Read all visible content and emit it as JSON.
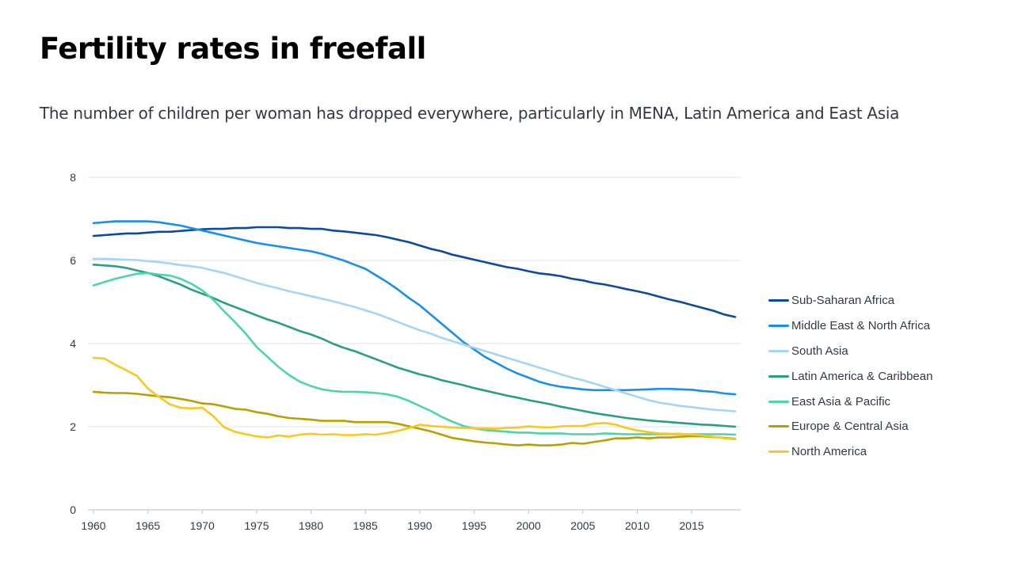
{
  "title": "Fertility rates in freefall",
  "subtitle": "The number of children per woman has dropped everywhere, particularly in MENA, Latin America and East Asia",
  "chart_data": {
    "type": "line",
    "title": "Fertility rates in freefall",
    "subtitle": "The number of children per woman has dropped everywhere, particularly in MENA, Latin America and East Asia",
    "xlabel": "",
    "ylabel": "",
    "xlim": [
      1960,
      2019
    ],
    "ylim": [
      0,
      8
    ],
    "x_ticks": [
      1960,
      1965,
      1970,
      1975,
      1980,
      1985,
      1990,
      1995,
      2000,
      2005,
      2010,
      2015
    ],
    "y_ticks": [
      0,
      2,
      4,
      6,
      8
    ],
    "grid": "horizontal",
    "legend_position": "right",
    "x": [
      1960,
      1961,
      1962,
      1963,
      1964,
      1965,
      1966,
      1967,
      1968,
      1969,
      1970,
      1971,
      1972,
      1973,
      1974,
      1975,
      1976,
      1977,
      1978,
      1979,
      1980,
      1981,
      1982,
      1983,
      1984,
      1985,
      1986,
      1987,
      1988,
      1989,
      1990,
      1991,
      1992,
      1993,
      1994,
      1995,
      1996,
      1997,
      1998,
      1999,
      2000,
      2001,
      2002,
      2003,
      2004,
      2005,
      2006,
      2007,
      2008,
      2009,
      2010,
      2011,
      2012,
      2013,
      2014,
      2015,
      2016,
      2017,
      2018,
      2019
    ],
    "series": [
      {
        "name": "Sub-Saharan Africa",
        "color": "#0b4a9c",
        "values": [
          6.59,
          6.61,
          6.63,
          6.65,
          6.65,
          6.67,
          6.69,
          6.69,
          6.71,
          6.73,
          6.75,
          6.76,
          6.76,
          6.78,
          6.78,
          6.8,
          6.8,
          6.8,
          6.78,
          6.78,
          6.76,
          6.76,
          6.72,
          6.7,
          6.67,
          6.64,
          6.61,
          6.56,
          6.5,
          6.44,
          6.36,
          6.28,
          6.22,
          6.14,
          6.08,
          6.02,
          5.96,
          5.9,
          5.84,
          5.8,
          5.74,
          5.69,
          5.66,
          5.62,
          5.56,
          5.52,
          5.46,
          5.42,
          5.37,
          5.31,
          5.26,
          5.2,
          5.13,
          5.06,
          5.0,
          4.93,
          4.86,
          4.79,
          4.7,
          4.64
        ]
      },
      {
        "name": "Middle East & North Africa",
        "color": "#1a8fe8",
        "values": [
          6.9,
          6.92,
          6.94,
          6.94,
          6.94,
          6.94,
          6.92,
          6.88,
          6.84,
          6.78,
          6.72,
          6.66,
          6.6,
          6.54,
          6.48,
          6.42,
          6.38,
          6.34,
          6.3,
          6.26,
          6.22,
          6.16,
          6.08,
          6.0,
          5.9,
          5.8,
          5.64,
          5.48,
          5.3,
          5.1,
          4.92,
          4.7,
          4.48,
          4.26,
          4.04,
          3.86,
          3.68,
          3.54,
          3.4,
          3.28,
          3.18,
          3.08,
          3.01,
          2.96,
          2.93,
          2.9,
          2.88,
          2.88,
          2.88,
          2.88,
          2.89,
          2.9,
          2.91,
          2.91,
          2.9,
          2.89,
          2.86,
          2.84,
          2.8,
          2.78
        ]
      },
      {
        "name": "South Asia",
        "color": "#a6d4f7",
        "values": [
          6.04,
          6.04,
          6.03,
          6.02,
          6.01,
          5.98,
          5.96,
          5.93,
          5.89,
          5.86,
          5.82,
          5.76,
          5.7,
          5.62,
          5.54,
          5.46,
          5.39,
          5.33,
          5.26,
          5.2,
          5.14,
          5.08,
          5.02,
          4.95,
          4.88,
          4.8,
          4.72,
          4.62,
          4.52,
          4.42,
          4.32,
          4.24,
          4.14,
          4.06,
          3.98,
          3.9,
          3.82,
          3.74,
          3.66,
          3.58,
          3.5,
          3.42,
          3.34,
          3.26,
          3.18,
          3.12,
          3.04,
          2.96,
          2.88,
          2.8,
          2.72,
          2.64,
          2.58,
          2.54,
          2.5,
          2.47,
          2.44,
          2.41,
          2.39,
          2.37
        ]
      },
      {
        "name": "Latin America & Caribbean",
        "color": "#2a9e84",
        "values": [
          5.9,
          5.88,
          5.86,
          5.82,
          5.76,
          5.7,
          5.62,
          5.52,
          5.42,
          5.3,
          5.2,
          5.1,
          4.98,
          4.88,
          4.78,
          4.68,
          4.58,
          4.5,
          4.4,
          4.3,
          4.22,
          4.12,
          4.0,
          3.9,
          3.82,
          3.72,
          3.62,
          3.52,
          3.42,
          3.34,
          3.26,
          3.2,
          3.12,
          3.06,
          3.0,
          2.93,
          2.87,
          2.81,
          2.75,
          2.7,
          2.64,
          2.59,
          2.54,
          2.48,
          2.43,
          2.38,
          2.33,
          2.29,
          2.25,
          2.21,
          2.18,
          2.15,
          2.13,
          2.11,
          2.09,
          2.07,
          2.05,
          2.04,
          2.02,
          2.0
        ]
      },
      {
        "name": "East Asia & Pacific",
        "color": "#4dd4ac",
        "values": [
          5.4,
          5.48,
          5.56,
          5.62,
          5.68,
          5.7,
          5.66,
          5.64,
          5.56,
          5.44,
          5.28,
          5.06,
          4.78,
          4.52,
          4.24,
          3.92,
          3.68,
          3.44,
          3.24,
          3.08,
          2.98,
          2.9,
          2.86,
          2.84,
          2.84,
          2.83,
          2.81,
          2.78,
          2.72,
          2.62,
          2.5,
          2.38,
          2.24,
          2.12,
          2.02,
          1.96,
          1.92,
          1.9,
          1.88,
          1.86,
          1.86,
          1.84,
          1.84,
          1.84,
          1.82,
          1.82,
          1.82,
          1.84,
          1.83,
          1.82,
          1.82,
          1.82,
          1.82,
          1.82,
          1.82,
          1.82,
          1.82,
          1.82,
          1.82,
          1.81
        ]
      },
      {
        "name": "Europe & Central Asia",
        "color": "#b9a000",
        "values": [
          2.84,
          2.82,
          2.81,
          2.81,
          2.79,
          2.76,
          2.73,
          2.71,
          2.67,
          2.62,
          2.56,
          2.54,
          2.49,
          2.43,
          2.41,
          2.35,
          2.31,
          2.25,
          2.21,
          2.19,
          2.17,
          2.14,
          2.14,
          2.14,
          2.11,
          2.11,
          2.11,
          2.11,
          2.07,
          2.01,
          1.95,
          1.89,
          1.81,
          1.73,
          1.69,
          1.65,
          1.62,
          1.6,
          1.57,
          1.55,
          1.57,
          1.55,
          1.55,
          1.57,
          1.61,
          1.59,
          1.63,
          1.67,
          1.72,
          1.72,
          1.74,
          1.72,
          1.74,
          1.74,
          1.76,
          1.77,
          1.77,
          1.75,
          1.73,
          1.71
        ]
      },
      {
        "name": "North America",
        "color": "#f7c81e",
        "values": [
          3.66,
          3.64,
          3.49,
          3.36,
          3.22,
          2.92,
          2.72,
          2.54,
          2.46,
          2.44,
          2.46,
          2.26,
          1.99,
          1.88,
          1.82,
          1.77,
          1.74,
          1.79,
          1.76,
          1.81,
          1.83,
          1.81,
          1.82,
          1.8,
          1.8,
          1.82,
          1.81,
          1.85,
          1.9,
          1.97,
          2.05,
          2.02,
          2.0,
          1.98,
          1.97,
          1.96,
          1.96,
          1.95,
          1.97,
          1.98,
          2.01,
          1.99,
          1.98,
          2.01,
          2.02,
          2.02,
          2.07,
          2.09,
          2.05,
          1.97,
          1.91,
          1.87,
          1.84,
          1.83,
          1.83,
          1.81,
          1.79,
          1.76,
          1.72,
          1.7
        ]
      }
    ]
  }
}
